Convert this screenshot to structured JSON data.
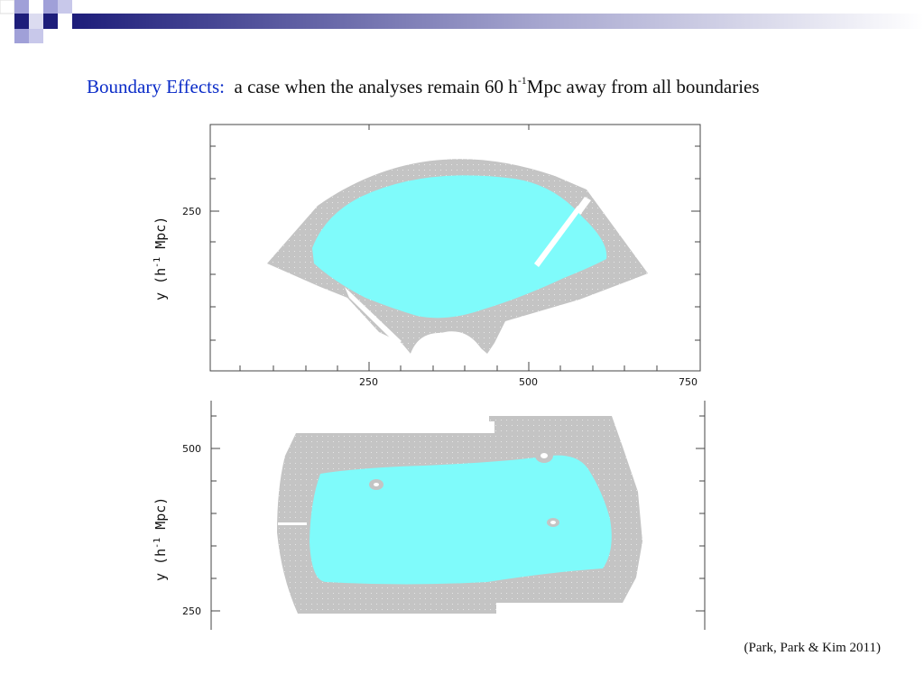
{
  "slide": {
    "title_lead": "Boundary Effects:",
    "title_rest": "a case when the analyses remain 60 h",
    "title_sup": "-1",
    "title_tail": "Mpc away from all boundaries",
    "citation": "(Park, Park & Kim 2011)"
  },
  "colors": {
    "survey_gray": "#c4c4c4",
    "analysis_cyan": "#7ffbfb",
    "title_blue": "#0b2cc8",
    "deco_navy": "#1d1d7a",
    "deco_lavender": "#a0a0d8"
  },
  "plot_top": {
    "y_label": "y (h",
    "y_label_sup": "-1",
    "y_label_tail": " Mpc)",
    "y_tick": "250",
    "x_ticks": [
      "250",
      "500",
      "750"
    ]
  },
  "plot_bottom": {
    "y_label": "y (h",
    "y_label_sup": "-1",
    "y_label_tail": " Mpc)",
    "y_ticks": [
      "500",
      "250"
    ]
  }
}
